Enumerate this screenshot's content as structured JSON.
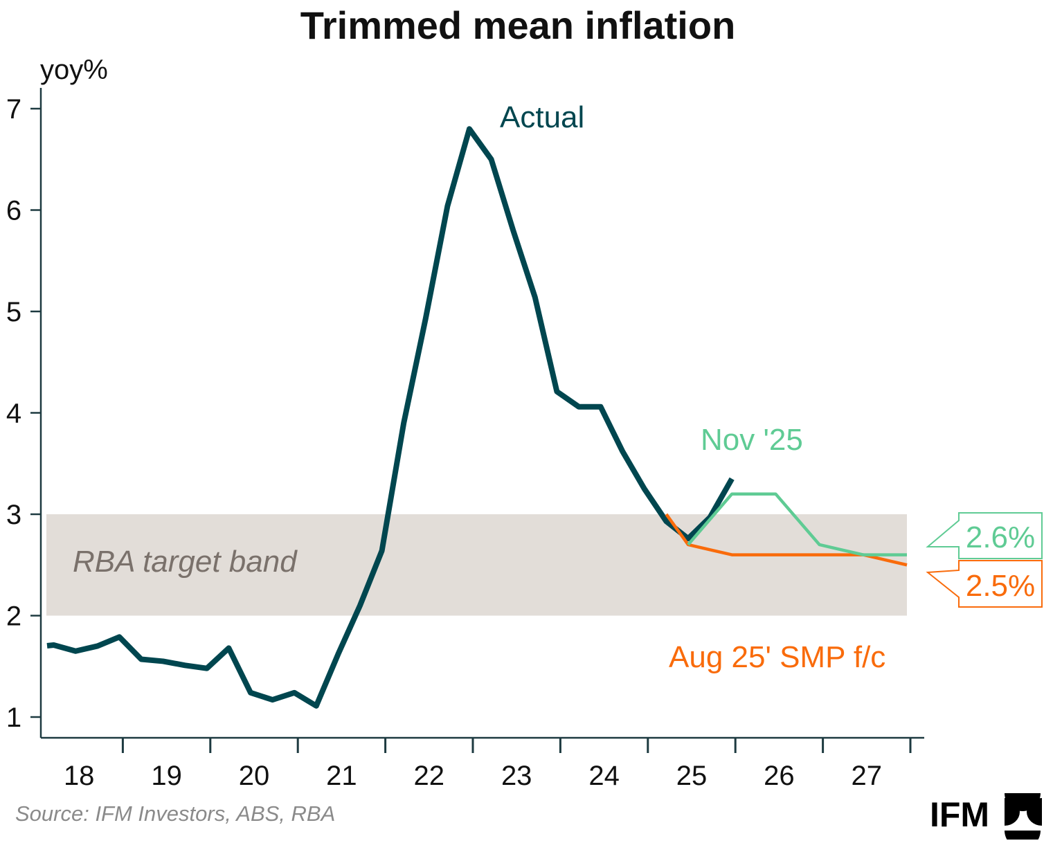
{
  "chart_data": {
    "type": "line",
    "title": "Trimmed mean inflation",
    "ylabel": "yoy%",
    "ylim": [
      1,
      7
    ],
    "yticks": [
      1,
      2,
      3,
      4,
      5,
      6,
      7
    ],
    "xtick_labels": [
      "18",
      "19",
      "20",
      "21",
      "22",
      "23",
      "24",
      "25",
      "26",
      "27"
    ],
    "x_unit": "quarter",
    "band": {
      "label": "RBA target band",
      "from": 2,
      "to": 3,
      "color": "#e2ddd8"
    },
    "series": [
      {
        "name": "Actual",
        "color": "#00464f",
        "x": [
          "2018-Q1",
          "2018-Q2",
          "2018-Q3",
          "2018-Q4",
          "2019-Q1",
          "2019-Q2",
          "2019-Q3",
          "2019-Q4",
          "2020-Q1",
          "2020-Q2",
          "2020-Q3",
          "2020-Q4",
          "2021-Q1",
          "2021-Q2",
          "2021-Q3",
          "2021-Q4",
          "2022-Q1",
          "2022-Q2",
          "2022-Q3",
          "2022-Q4",
          "2023-Q1",
          "2023-Q2",
          "2023-Q3",
          "2023-Q4",
          "2024-Q1",
          "2024-Q2",
          "2024-Q3",
          "2024-Q4",
          "2025-Q1",
          "2025-Q2",
          "2025-Q3",
          "2025-Q4"
        ],
        "values": [
          1.71,
          1.65,
          1.7,
          1.79,
          1.57,
          1.55,
          1.51,
          1.48,
          1.68,
          1.24,
          1.17,
          1.24,
          1.11,
          1.62,
          2.1,
          2.64,
          3.9,
          4.93,
          6.04,
          6.8,
          6.5,
          5.8,
          5.14,
          4.21,
          4.06,
          4.06,
          3.62,
          3.25,
          2.93,
          2.76,
          2.97,
          3.35
        ]
      },
      {
        "name": "Nov '25",
        "color": "#5fcb94",
        "x": [
          "2025-Q2",
          "2025-Q3",
          "2025-Q4",
          "2026-Q1",
          "2026-Q2",
          "2026-Q3",
          "2026-Q4",
          "2027-Q1",
          "2027-Q2",
          "2027-Q3",
          "2027-Q4"
        ],
        "values": [
          2.7,
          2.95,
          3.2,
          3.2,
          3.2,
          2.95,
          2.7,
          2.65,
          2.6,
          2.6,
          2.6
        ],
        "end_label": "2.6%"
      },
      {
        "name": "Aug 25' SMP f/c",
        "color": "#f96b0b",
        "x": [
          "2025-Q1",
          "2025-Q2",
          "2025-Q3",
          "2025-Q4",
          "2026-Q1",
          "2026-Q2",
          "2026-Q3",
          "2026-Q4",
          "2027-Q1",
          "2027-Q2",
          "2027-Q3",
          "2027-Q4"
        ],
        "values": [
          3.0,
          2.7,
          2.65,
          2.6,
          2.6,
          2.6,
          2.6,
          2.6,
          2.6,
          2.6,
          2.55,
          2.5
        ],
        "end_label": "2.5%"
      }
    ],
    "source": "Source: IFM Investors, ABS, RBA"
  },
  "logo": {
    "text": "IFM"
  }
}
